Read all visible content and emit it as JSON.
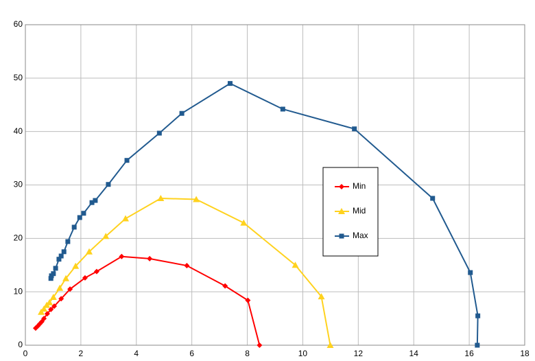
{
  "chart_data": {
    "type": "line",
    "xlim": [
      0,
      18
    ],
    "xticks": [
      0,
      2,
      4,
      6,
      8,
      10,
      12,
      14,
      16,
      18
    ],
    "ylim": [
      0,
      60
    ],
    "yticks": [
      0,
      10,
      20,
      30,
      40,
      50,
      60
    ],
    "grid": true,
    "legend": "right",
    "series": [
      {
        "name": "Min",
        "color": "#ff0000",
        "marker": "diamond",
        "x": [
          0.37,
          0.45,
          0.52,
          0.59,
          0.67,
          0.79,
          0.92,
          1.04,
          1.29,
          1.61,
          2.15,
          2.57,
          3.47,
          4.48,
          5.82,
          7.2,
          8.02,
          8.44
        ],
        "values": [
          3.2,
          3.6,
          4.0,
          4.4,
          5.0,
          5.9,
          6.7,
          7.3,
          8.7,
          10.5,
          12.6,
          13.8,
          16.6,
          16.2,
          14.9,
          11.1,
          8.4,
          0
        ]
      },
      {
        "name": "Mid",
        "color": "#ffd21e",
        "marker": "triangle",
        "x": [
          0.57,
          0.67,
          0.77,
          0.87,
          1.01,
          1.24,
          1.46,
          1.81,
          2.3,
          2.9,
          3.61,
          4.88,
          6.16,
          7.87,
          9.73,
          10.67,
          10.99
        ],
        "values": [
          6.2,
          6.8,
          7.5,
          8.0,
          9.0,
          10.7,
          12.5,
          14.8,
          17.5,
          20.4,
          23.7,
          27.5,
          27.3,
          22.9,
          15.0,
          9.1,
          0
        ]
      },
      {
        "name": "Max",
        "color": "#215a8f",
        "marker": "square",
        "x": [
          0.92,
          0.94,
          1.01,
          1.09,
          1.21,
          1.29,
          1.39,
          1.53,
          1.76,
          1.96,
          2.1,
          2.4,
          2.52,
          2.99,
          3.66,
          4.83,
          5.64,
          7.38,
          9.28,
          11.86,
          14.68,
          16.04,
          16.31,
          16.29
        ],
        "values": [
          12.5,
          13.0,
          13.4,
          14.4,
          16.1,
          16.7,
          17.5,
          19.4,
          22.1,
          23.9,
          24.7,
          26.7,
          27.1,
          30.1,
          34.6,
          39.7,
          43.4,
          49.0,
          44.2,
          40.5,
          27.5,
          13.6,
          5.5,
          0
        ]
      }
    ]
  }
}
